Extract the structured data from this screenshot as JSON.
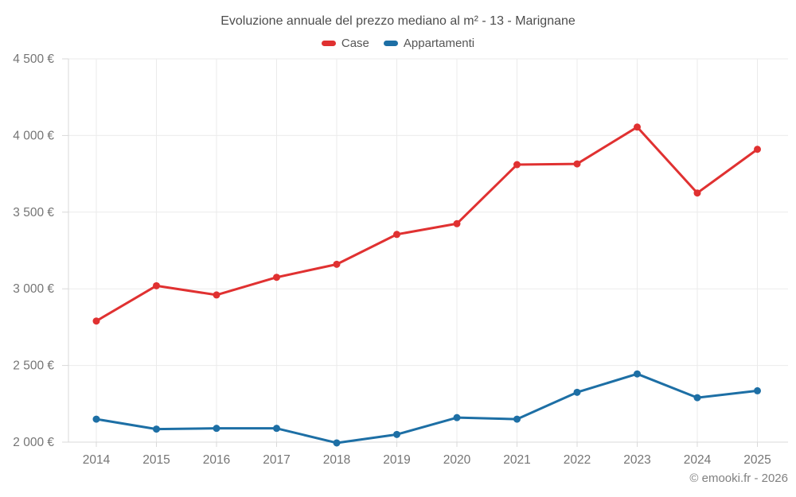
{
  "chart_data": {
    "type": "line",
    "title": "Evoluzione annuale del prezzo mediano al m² - 13 - Marignane",
    "categories": [
      "2014",
      "2015",
      "2016",
      "2017",
      "2018",
      "2019",
      "2020",
      "2021",
      "2022",
      "2023",
      "2024",
      "2025"
    ],
    "series": [
      {
        "name": "Case",
        "color": "#e03131",
        "values": [
          2790,
          3020,
          2960,
          3075,
          3160,
          3355,
          3425,
          3810,
          3815,
          4055,
          3625,
          3910
        ]
      },
      {
        "name": "Appartamenti",
        "color": "#1d6fa5",
        "values": [
          2150,
          2085,
          2090,
          2090,
          1995,
          2050,
          2160,
          2150,
          2325,
          2445,
          2290,
          2335
        ]
      }
    ],
    "xlabel": "",
    "ylabel": "",
    "ylim": [
      2000,
      4500
    ],
    "ytick_step": 500,
    "y_ticks": [
      "2 000 €",
      "2 500 €",
      "3 000 €",
      "3 500 €",
      "4 000 €",
      "4 500 €"
    ],
    "grid": true,
    "legend_position": "top"
  },
  "attribution": "© emooki.fr - 2026",
  "colors": {
    "background": "#ffffff",
    "grid": "#ebebeb",
    "axis_line": "#d9d9d9",
    "axis_text": "#757575",
    "title_text": "#4d4d4d",
    "legend_text": "#555555"
  }
}
